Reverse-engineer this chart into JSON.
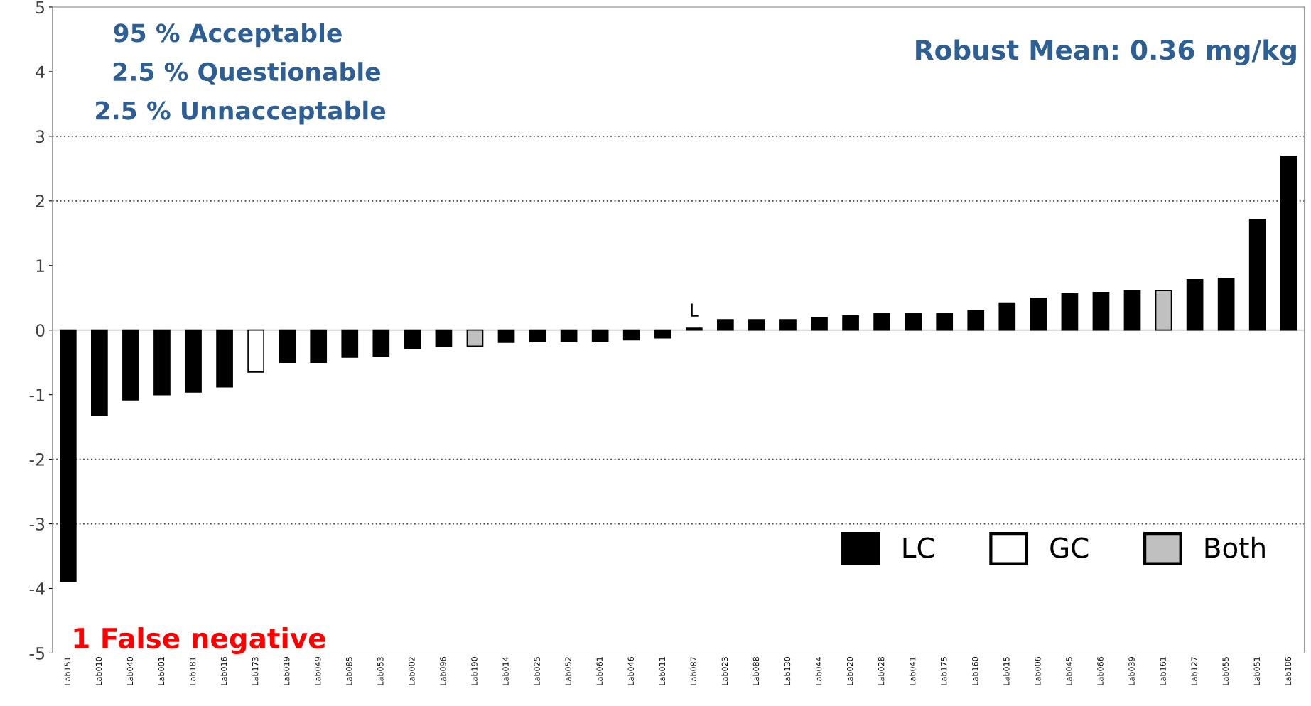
{
  "chart_data": {
    "type": "bar",
    "categories": [
      "Lab151",
      "Lab010",
      "Lab040",
      "Lab001",
      "Lab181",
      "Lab016",
      "Lab173",
      "Lab019",
      "Lab049",
      "Lab085",
      "Lab053",
      "Lab002",
      "Lab096",
      "Lab190",
      "Lab014",
      "Lab025",
      "Lab052",
      "Lab061",
      "Lab046",
      "Lab011",
      "Lab087",
      "Lab023",
      "Lab088",
      "Lab130",
      "Lab044",
      "Lab020",
      "Lab028",
      "Lab041",
      "Lab175",
      "Lab160",
      "Lab015",
      "Lab006",
      "Lab045",
      "Lab066",
      "Lab039",
      "Lab161",
      "Lab127",
      "Lab055",
      "Lab051",
      "Lab186"
    ],
    "series": [
      {
        "name": "LC",
        "color": "#000000",
        "values": [
          -3.89,
          -1.32,
          -1.08,
          -1.0,
          -0.96,
          -0.88,
          null,
          -0.5,
          -0.5,
          -0.42,
          -0.4,
          -0.28,
          -0.25,
          null,
          -0.19,
          -0.18,
          -0.18,
          -0.17,
          -0.15,
          -0.12,
          0.03,
          0.16,
          0.16,
          0.16,
          0.19,
          0.22,
          0.26,
          0.26,
          0.26,
          0.3,
          0.42,
          0.49,
          0.56,
          0.58,
          0.61,
          null,
          0.78,
          0.8,
          1.71,
          2.69
        ]
      },
      {
        "name": "GC",
        "color": "#ffffff",
        "values": [
          null,
          null,
          null,
          null,
          null,
          null,
          -0.65,
          null,
          null,
          null,
          null,
          null,
          null,
          null,
          null,
          null,
          null,
          null,
          null,
          null,
          null,
          null,
          null,
          null,
          null,
          null,
          null,
          null,
          null,
          null,
          null,
          null,
          null,
          null,
          null,
          null,
          null,
          null,
          null,
          null
        ]
      },
      {
        "name": "Both",
        "color": "#c0c0c0",
        "values": [
          null,
          null,
          null,
          null,
          null,
          null,
          null,
          null,
          null,
          null,
          null,
          null,
          null,
          -0.25,
          null,
          null,
          null,
          null,
          null,
          null,
          null,
          null,
          null,
          null,
          null,
          null,
          null,
          null,
          null,
          null,
          null,
          null,
          null,
          null,
          null,
          0.61,
          null,
          null,
          null,
          null
        ]
      }
    ],
    "ylim": [
      -5,
      5
    ],
    "yticks": [
      -5,
      -4,
      -3,
      -2,
      -1,
      0,
      1,
      2,
      3,
      4,
      5
    ],
    "ref_lines": [
      {
        "axis": "y",
        "value": 3,
        "color": "#404040",
        "line_style": "dotted"
      },
      {
        "axis": "y",
        "value": 2,
        "color": "#404040",
        "line_style": "dotted"
      },
      {
        "axis": "y",
        "value": -2,
        "color": "#404040",
        "line_style": "dotted"
      },
      {
        "axis": "y",
        "value": -3,
        "color": "#404040",
        "line_style": "dotted"
      }
    ],
    "annotations": [
      "95 % Acceptable",
      "2.5 % Questionable",
      "2.5 % Unnacceptable",
      "Robust Mean: 0.36 mg/kg",
      "1 False negative",
      {
        "text": "L",
        "x": "Lab087",
        "y": 0.03
      }
    ],
    "legend": "bottom right",
    "grid": false
  }
}
